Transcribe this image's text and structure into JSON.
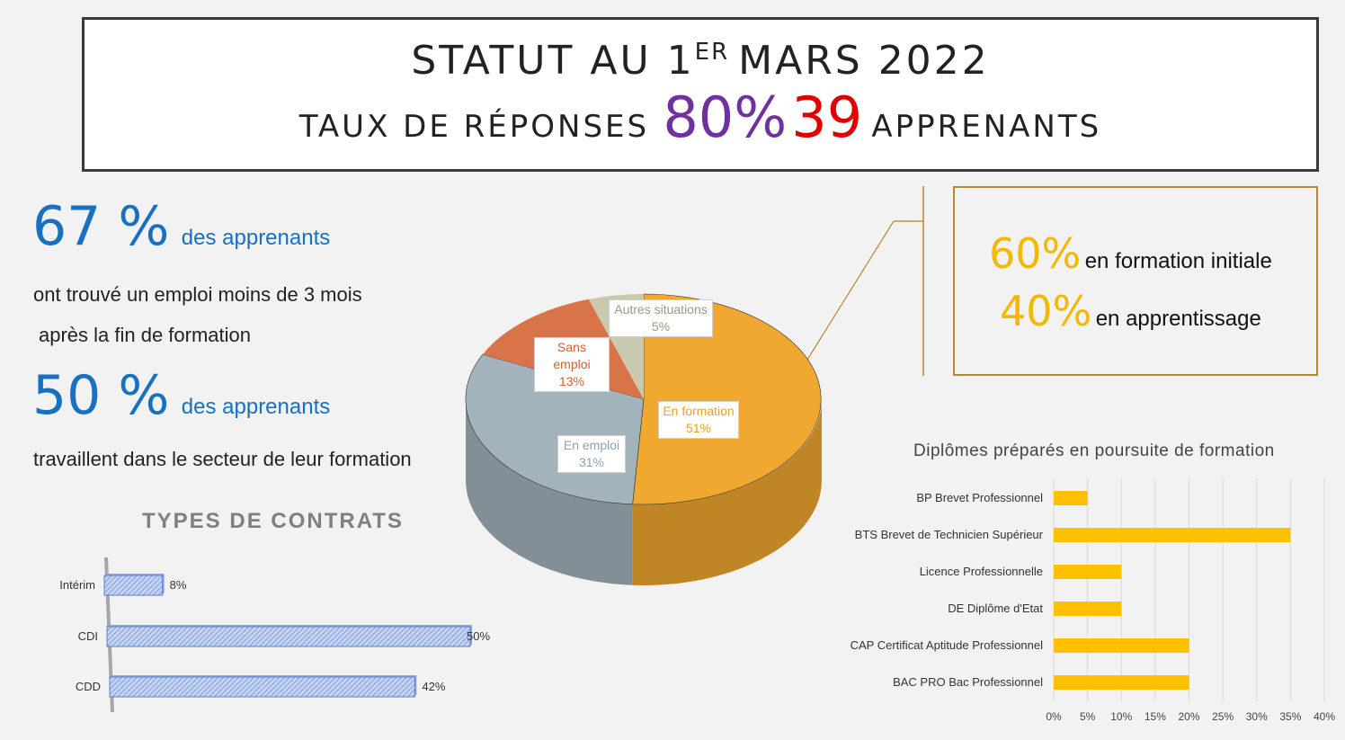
{
  "header": {
    "line1_a": "STATUT AU 1",
    "line1_sup": "ER",
    "line1_b": "MARS 2022",
    "line2_label": "TAUX DE RÉPONSES",
    "rate": "80%",
    "count": "39",
    "count_label": "APPRENANTS"
  },
  "stats": {
    "s1_value": "67 %",
    "s1_label": "des apprenants",
    "s1_text1": "ont trouvé un emploi moins de 3 mois",
    "s1_text2": "après la fin de formation",
    "s2_value": "50 %",
    "s2_label": "des apprenants",
    "s2_text": "travaillent dans le secteur de leur formation"
  },
  "formation_box": {
    "v1": "60%",
    "t1": "en formation initiale",
    "v2": "40%",
    "t2": "en apprentissage"
  },
  "chart_data": [
    {
      "type": "pie",
      "slices": [
        {
          "label": "En formation",
          "value": 51,
          "value_label": "51%",
          "color": "#f0a830",
          "text_color": "#f0a020"
        },
        {
          "label": "En emploi",
          "value": 31,
          "value_label": "31%",
          "color": "#a3b3bb",
          "text_color": "#8aa0b8"
        },
        {
          "label": "Sans emploi",
          "value": 13,
          "value_label": "13%",
          "color": "#d9744a",
          "text_color": "#d0602c"
        },
        {
          "label": "Autres situations",
          "value": 5,
          "value_label": "5%",
          "color": "#c9c9b0",
          "text_color": "#9a9a80"
        }
      ]
    },
    {
      "type": "bar",
      "orientation": "horizontal",
      "title": "TYPES DE CONTRATS",
      "categories": [
        "Intérim",
        "CDI",
        "CDD"
      ],
      "values": [
        8,
        50,
        42
      ],
      "value_labels": [
        "8%",
        "50%",
        "42%"
      ],
      "color": "#5b7fcf"
    },
    {
      "type": "bar",
      "orientation": "horizontal",
      "title": "Diplômes préparés en poursuite de formation",
      "categories": [
        "BP Brevet Professionnel",
        "BTS Brevet de Technicien Supérieur",
        "Licence Professionnelle",
        "DE Diplôme d'Etat",
        "CAP Certificat Aptitude Professionnel",
        "BAC PRO Bac Professionnel"
      ],
      "values": [
        5,
        35,
        10,
        10,
        20,
        20
      ],
      "xlim": [
        0,
        40
      ],
      "x_ticks": [
        "0%",
        "5%",
        "10%",
        "15%",
        "20%",
        "25%",
        "30%",
        "35%",
        "40%"
      ],
      "grid": true,
      "color": "#ffc000"
    }
  ]
}
